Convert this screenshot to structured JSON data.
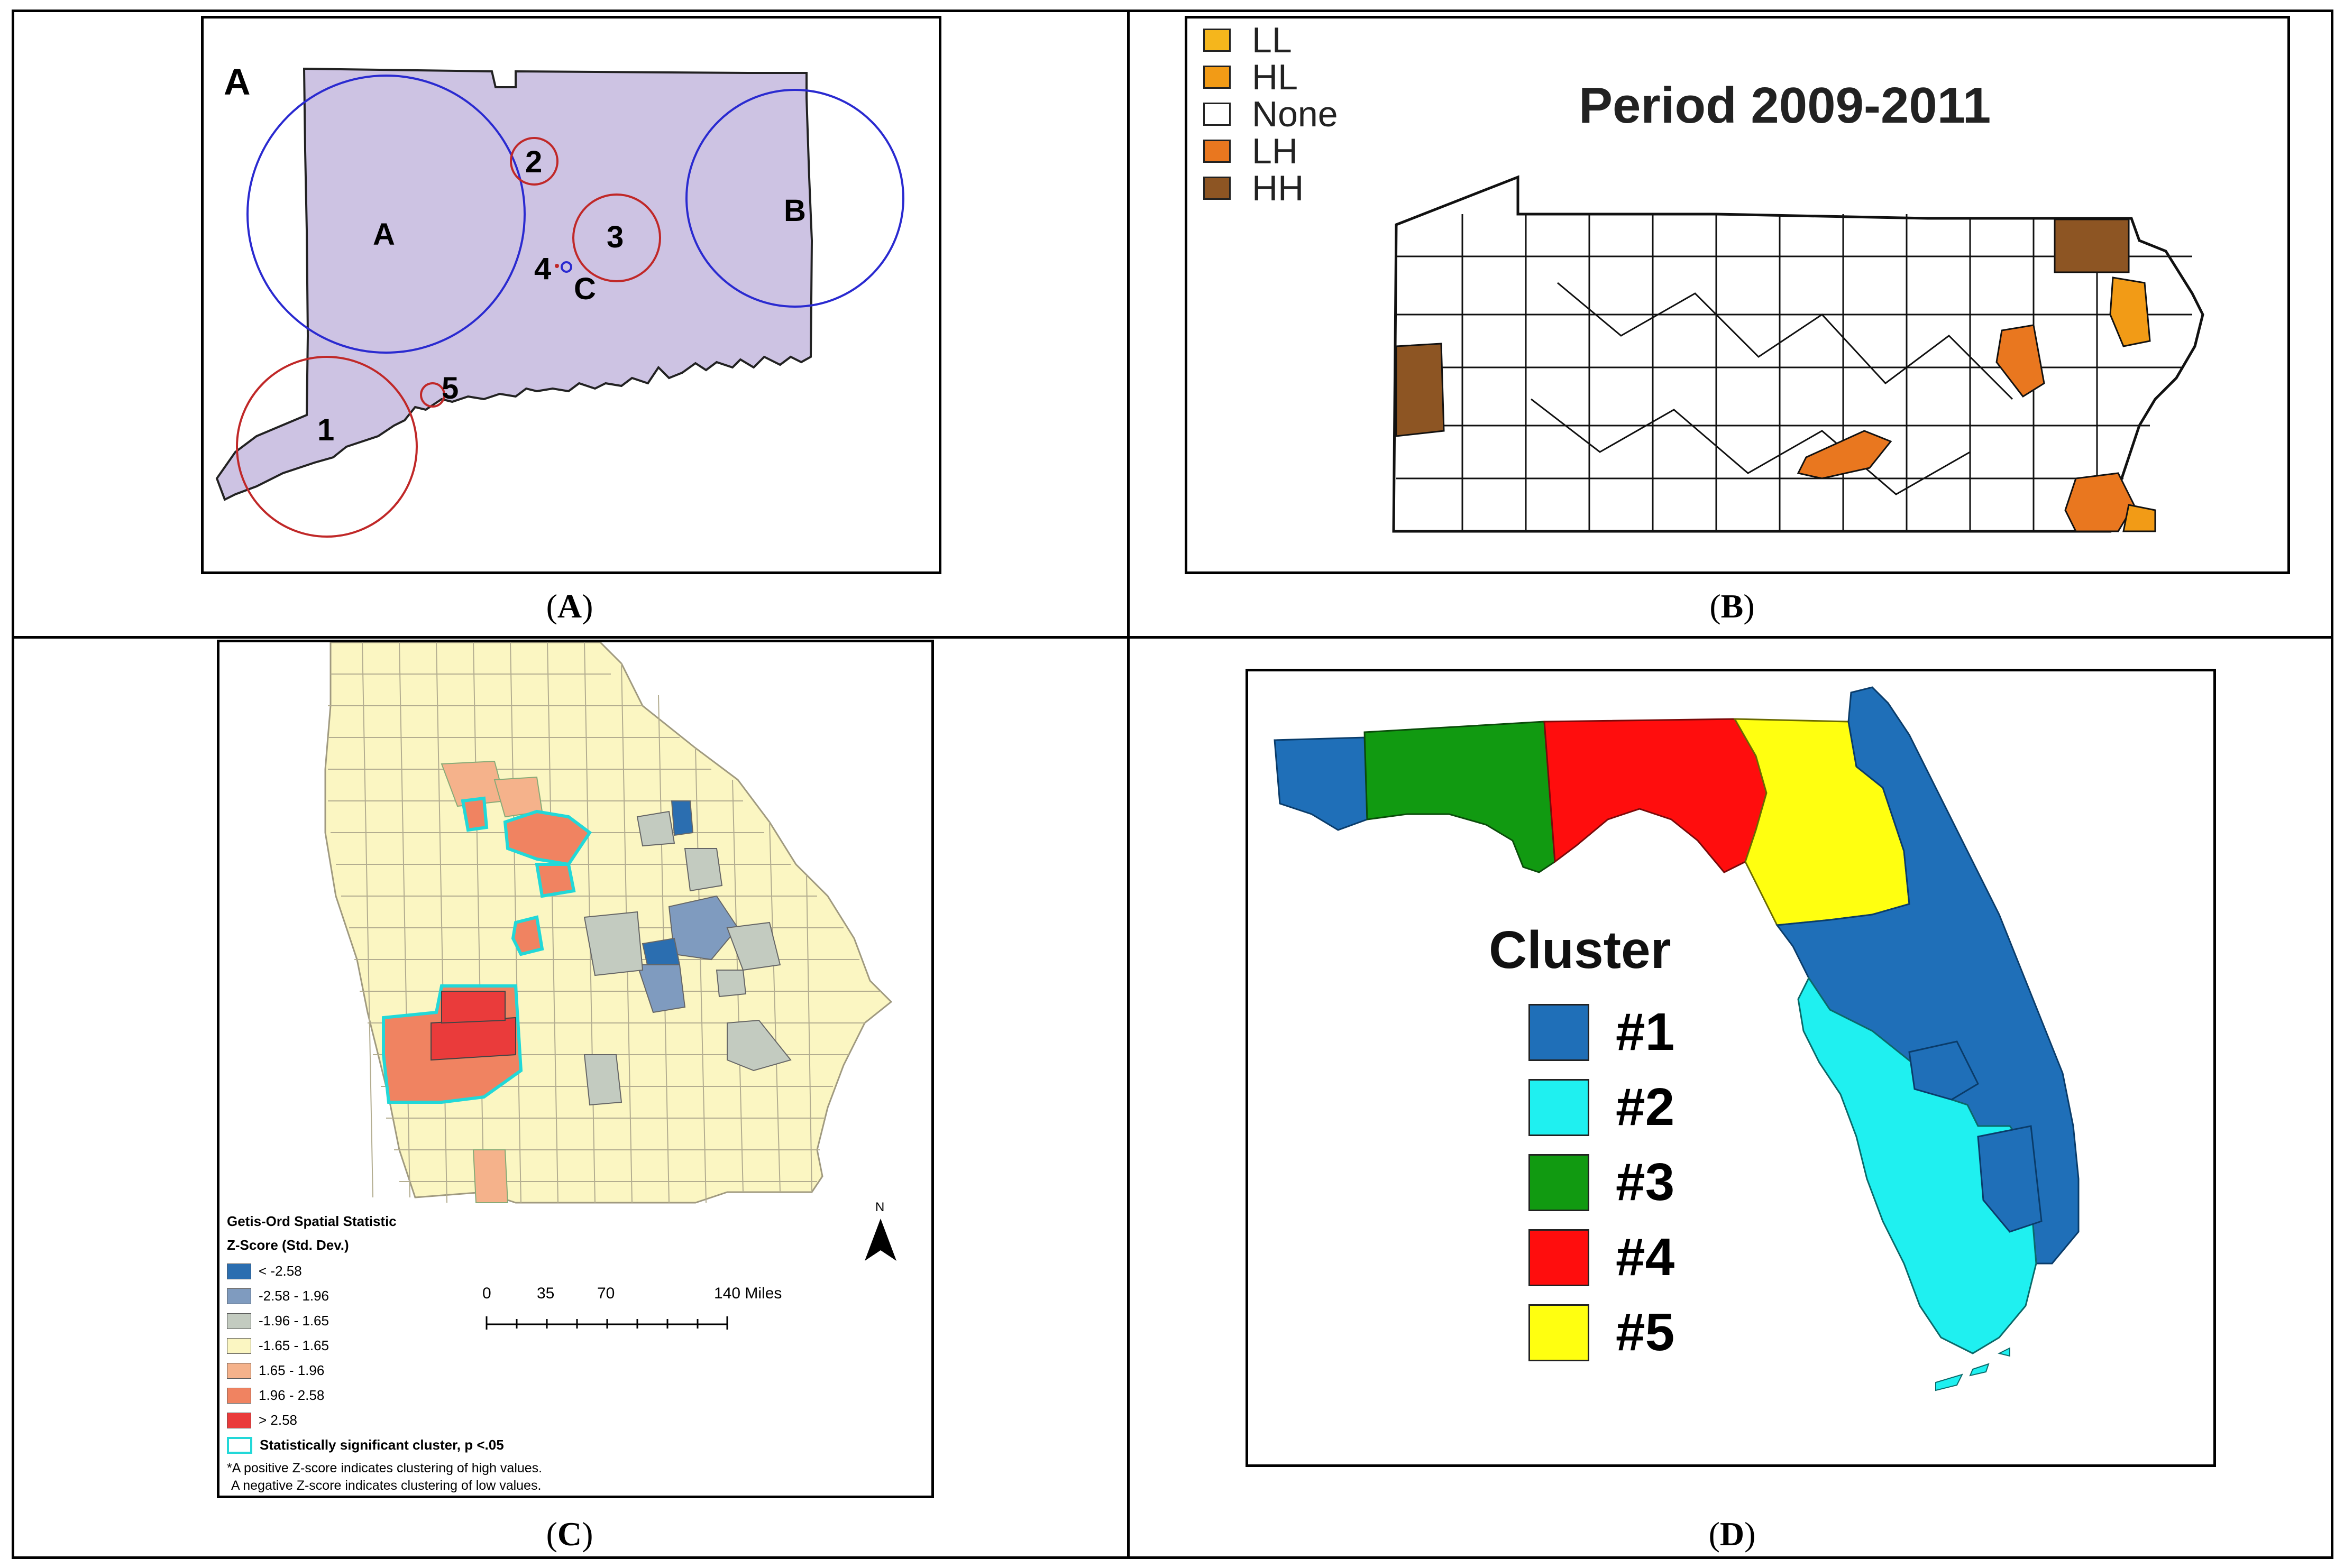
{
  "panelA": {
    "corner_label": "A",
    "circle_labels": [
      "A",
      "B",
      "C",
      "1",
      "2",
      "3",
      "4",
      "5"
    ],
    "caption_letter": "A",
    "colors": {
      "state_fill": "#cdc3e3",
      "blue_circle": "#2a2ad0",
      "red_circle": "#c02828"
    }
  },
  "panelB": {
    "title": "Period 2009-2011",
    "legend": [
      {
        "label": "LL",
        "color": "#f5b61c"
      },
      {
        "label": "HL",
        "color": "#f29b16"
      },
      {
        "label": "None",
        "color": "#ffffff"
      },
      {
        "label": "LH",
        "color": "#e9771f"
      },
      {
        "label": "HH",
        "color": "#8d5523"
      }
    ],
    "caption_letter": "B"
  },
  "panelC": {
    "legend_title": "Getis-Ord Spatial Statistic",
    "legend_subtitle": "Z-Score (Std. Dev.)",
    "legend": [
      {
        "label": "< -2.58",
        "color": "#2b6eb0"
      },
      {
        "label": "-2.58 - 1.96",
        "color": "#7f9bbf"
      },
      {
        "label": "-1.96 - 1.65",
        "color": "#c3cbc0"
      },
      {
        "label": "-1.65 - 1.65",
        "color": "#fbf6c2"
      },
      {
        "label": "1.65 - 1.96",
        "color": "#f5b28b"
      },
      {
        "label": "1.96 - 2.58",
        "color": "#f08361"
      },
      {
        "label": "> 2.58",
        "color": "#ea3b3b"
      }
    ],
    "cluster_label": "Statistically significant cluster, p <.05",
    "footnote_line1": "*A positive Z-score indicates clustering of high values.",
    "footnote_line2": "A negative Z-score indicates clustering of low values.",
    "scale_ticks": [
      "0",
      "35",
      "70",
      "140 Miles"
    ],
    "north_label": "N",
    "caption_letter": "C"
  },
  "panelD": {
    "legend_title": "Cluster",
    "legend": [
      {
        "label": "#1",
        "color": "#1f6fb8"
      },
      {
        "label": "#2",
        "color": "#1ff0f0"
      },
      {
        "label": "#3",
        "color": "#119a11"
      },
      {
        "label": "#4",
        "color": "#ff0d0d"
      },
      {
        "label": "#5",
        "color": "#ffff10"
      }
    ],
    "caption_letter": "D"
  }
}
